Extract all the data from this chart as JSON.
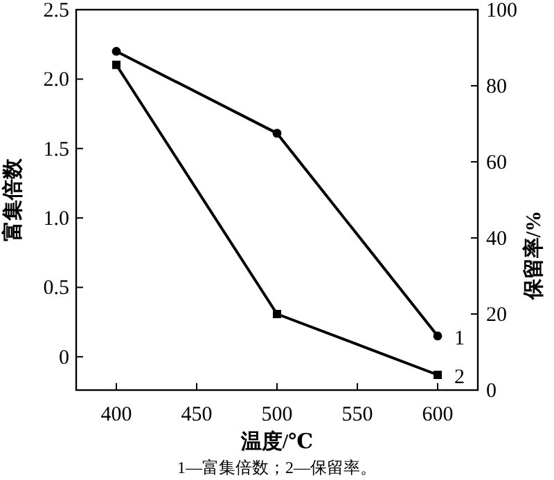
{
  "chart_data": {
    "type": "line",
    "xlabel": "温度/℃",
    "ylabel": "富集倍数",
    "y2label": "保留率/%",
    "x": [
      400,
      500,
      600
    ],
    "xlim": [
      375,
      625
    ],
    "xticks": [
      400,
      450,
      500,
      550,
      600
    ],
    "ylim": [
      -0.24,
      2.5
    ],
    "yticks": [
      0,
      0.5,
      {
        "value": 1,
        "label": "1.0"
      },
      1.5,
      {
        "value": 2,
        "label": "2.0"
      },
      2.5
    ],
    "y2lim": [
      0,
      100
    ],
    "y2ticks": [
      0,
      20,
      40,
      60,
      80,
      100
    ],
    "series": [
      {
        "name": "1",
        "color": "#000000",
        "marker": "circle",
        "values": [
          2.2,
          1.61,
          0.15
        ]
      },
      {
        "name": "2",
        "color": "#000000",
        "marker": "square",
        "axis": "y2",
        "values": [
          85.5,
          20,
          4
        ]
      }
    ],
    "annotations": [
      "1—富集倍数；2—保留率。"
    ],
    "grid": false,
    "line_style": "solid"
  }
}
